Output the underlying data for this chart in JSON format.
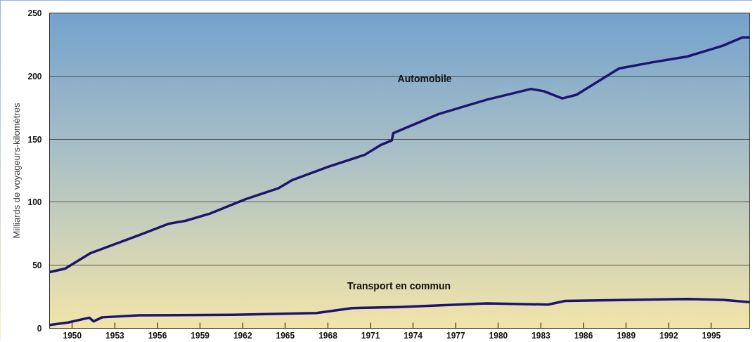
{
  "chart_data": {
    "type": "line",
    "ylabel": "Milliards de voyageurs-kilomètres",
    "xlim": [
      1948.4,
      1997.7
    ],
    "ylim": [
      0,
      250
    ],
    "xticks": [
      1950,
      1953,
      1956,
      1959,
      1962,
      1965,
      1968,
      1971,
      1974,
      1977,
      1980,
      1983,
      1986,
      1989,
      1992,
      1995
    ],
    "yticks": [
      0,
      50,
      100,
      150,
      200,
      250
    ],
    "grid": "y",
    "marker": "none",
    "line_style": "solid",
    "series": [
      {
        "name": "Automobile",
        "color": "#1c1470",
        "x": [
          1948.4,
          1949.5,
          1951.3,
          1954.7,
          1956.75,
          1958,
          1959.7,
          1962.2,
          1964.5,
          1965.5,
          1968,
          1970.6,
          1971.7,
          1972.5,
          1972.6,
          1975.8,
          1979.2,
          1982.3,
          1983.2,
          1984.5,
          1985.5,
          1988.5,
          1990.8,
          1993.3,
          1995.8,
          1997.2,
          1997.7
        ],
        "values": [
          44.5,
          47.3,
          59.7,
          73.9,
          82.8,
          85.3,
          91,
          102.4,
          111,
          117.6,
          128,
          137.6,
          145.2,
          149,
          154.7,
          169.9,
          181.3,
          189.8,
          188,
          182.3,
          185.1,
          206,
          210.8,
          215.5,
          224,
          230.7,
          230.7
        ]
      },
      {
        "name": "Transport en commun",
        "color": "#1c1470",
        "x": [
          1948.4,
          1949.7,
          1951.2,
          1951.5,
          1952.1,
          1954.7,
          1961.3,
          1967.2,
          1969.7,
          1973,
          1979.2,
          1983.5,
          1984.7,
          1993.3,
          1995.8,
          1997.7
        ],
        "values": [
          2.7,
          4.6,
          8.4,
          5.5,
          8.7,
          10.3,
          10.7,
          12.1,
          16,
          16.9,
          19.8,
          18.8,
          21.7,
          23.2,
          22.6,
          20.7
        ]
      }
    ]
  }
}
